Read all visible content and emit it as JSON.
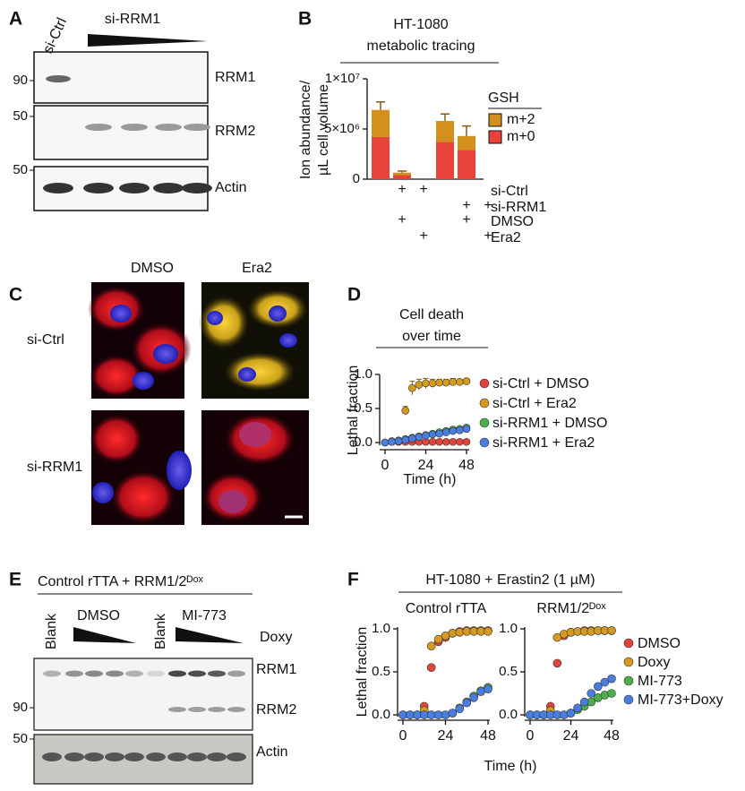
{
  "panel_labels": [
    "A",
    "B",
    "C",
    "D",
    "E",
    "F"
  ],
  "blot_a": {
    "lanes": [
      "si-Ctrl",
      "si-RRM1"
    ],
    "bands": [
      "RRM1",
      "RRM2",
      "Actin"
    ],
    "markers": [
      90,
      50,
      50
    ]
  },
  "images_c": {
    "columns": [
      "DMSO",
      "Era2"
    ],
    "rows": [
      "si-Ctrl",
      "si-RRM1"
    ]
  },
  "blot_e": {
    "title": "Control rTTA + RRM1/2ᴰᵒˣ",
    "lanes": [
      "Blank",
      "DMSO",
      "Blank",
      "MI-773"
    ],
    "gradient_label": "Doxy",
    "bands": [
      "RRM1",
      "RRM2",
      "Actin"
    ],
    "markers": [
      90,
      50
    ]
  },
  "chart_data": [
    {
      "type": "bar",
      "stacked": true,
      "title": [
        "HT-1080",
        "metabolic tracing"
      ],
      "ylabel": [
        "Ion abundance/",
        "µL cell volume"
      ],
      "ylim": [
        0,
        10000000
      ],
      "yticks": [
        0,
        {
          "value": 5000000,
          "label": "5×10⁶"
        },
        {
          "value": 10000000,
          "label": "1×10⁷"
        }
      ],
      "legend_title": "GSH",
      "series": [
        {
          "name": "m+0",
          "color": "#e8433a",
          "values": [
            4200000,
            400000,
            3700000,
            2900000
          ]
        },
        {
          "name": "m+2",
          "color": "#d4901c",
          "values": [
            2700000,
            250000,
            2100000,
            1400000
          ],
          "errors": [
            800000,
            150000,
            700000,
            1000000
          ]
        }
      ],
      "conditions": [
        {
          "name": "si-Ctrl",
          "marks": [
            "+",
            "+",
            null,
            null
          ]
        },
        {
          "name": "si-RRM1",
          "marks": [
            null,
            null,
            "+",
            "+"
          ]
        },
        {
          "name": "DMSO",
          "marks": [
            "+",
            null,
            "+",
            null
          ]
        },
        {
          "name": "Era2",
          "marks": [
            null,
            "+",
            null,
            "+"
          ]
        }
      ]
    },
    {
      "type": "line",
      "title": [
        "Cell death",
        "over time"
      ],
      "ylabel": "Lethal fraction",
      "xlabel": "Time (h)",
      "x": [
        0,
        4,
        8,
        12,
        16,
        20,
        24,
        28,
        32,
        36,
        40,
        44,
        48
      ],
      "xlim": [
        0,
        48
      ],
      "xticks": [
        0,
        24,
        48
      ],
      "ylim": [
        0,
        1
      ],
      "yticks": [
        {
          "value": 0,
          "label": "0.0"
        },
        {
          "value": 0.5,
          "label": "0.5"
        },
        {
          "value": 1,
          "label": "1.0"
        }
      ],
      "series": [
        {
          "name": "si-Ctrl + DMSO",
          "color": "#e0443a",
          "values": [
            0,
            0.01,
            0.01,
            0.01,
            0.01,
            0.01,
            0.01,
            0.01,
            0.01,
            0.01,
            0.01,
            0.01,
            0.01
          ]
        },
        {
          "name": "si-Ctrl + Era2",
          "color": "#d59a1e",
          "values": [
            0,
            0.01,
            0.02,
            0.47,
            0.8,
            0.85,
            0.87,
            0.87,
            0.88,
            0.88,
            0.89,
            0.89,
            0.9
          ],
          "errors": [
            0,
            0,
            0,
            0.06,
            0.1,
            0.08,
            0.07,
            0.06,
            0.05,
            0.05,
            0.05,
            0.04,
            0.04
          ]
        },
        {
          "name": "si-RRM1 + DMSO",
          "color": "#4caf4a",
          "values": [
            0,
            0.02,
            0.03,
            0.05,
            0.07,
            0.09,
            0.11,
            0.13,
            0.15,
            0.17,
            0.19,
            0.2,
            0.22
          ]
        },
        {
          "name": "si-RRM1 + Era2",
          "color": "#4a7de0",
          "values": [
            0,
            0.01,
            0.02,
            0.04,
            0.06,
            0.08,
            0.1,
            0.12,
            0.13,
            0.15,
            0.17,
            0.18,
            0.2
          ]
        }
      ]
    },
    {
      "type": "line",
      "title": "HT-1080 + Erastin2 (1 µM)",
      "ylabel": "Lethal fraction",
      "xlabel": "Time (h)",
      "x": [
        0,
        4,
        8,
        12,
        16,
        20,
        24,
        28,
        32,
        36,
        40,
        44,
        48
      ],
      "xlim": [
        0,
        48
      ],
      "xticks": [
        0,
        24,
        48
      ],
      "ylim": [
        0,
        1
      ],
      "yticks": [
        {
          "value": 0,
          "label": "0.0"
        },
        {
          "value": 0.5,
          "label": "0.5"
        },
        {
          "value": 1,
          "label": "1.0"
        }
      ],
      "series": [
        {
          "name": "DMSO",
          "color": "#e0443a"
        },
        {
          "name": "Doxy",
          "color": "#d59a1e"
        },
        {
          "name": "MI-773",
          "color": "#4caf4a"
        },
        {
          "name": "MI-773+Doxy",
          "color": "#4a7de0"
        }
      ],
      "subplots": [
        {
          "title": "Control rTTA",
          "values": [
            [
              0,
              0,
              0,
              0.1,
              0.55,
              0.85,
              0.9,
              0.95,
              0.97,
              0.98,
              0.98,
              0.98,
              0.98
            ],
            [
              0,
              0,
              0,
              0.05,
              0.8,
              0.88,
              0.92,
              0.95,
              0.96,
              0.97,
              0.97,
              0.97,
              0.97
            ],
            [
              0,
              0,
              0,
              0,
              0,
              0,
              0,
              0.02,
              0.08,
              0.15,
              0.22,
              0.28,
              0.32
            ],
            [
              0,
              0,
              0,
              0,
              0,
              0,
              0,
              0.02,
              0.07,
              0.14,
              0.2,
              0.27,
              0.3
            ]
          ]
        },
        {
          "title": "RRM1/2ᴰᵒˣ",
          "values": [
            [
              0,
              0,
              0,
              0.1,
              0.6,
              0.92,
              0.96,
              0.97,
              0.98,
              0.98,
              0.98,
              0.98,
              0.98
            ],
            [
              0,
              0,
              0,
              0.05,
              0.9,
              0.94,
              0.96,
              0.97,
              0.97,
              0.97,
              0.98,
              0.98,
              0.98
            ],
            [
              0,
              0,
              0,
              0,
              0,
              0,
              0.02,
              0.06,
              0.1,
              0.15,
              0.2,
              0.23,
              0.25
            ],
            [
              0,
              0,
              0,
              0,
              0,
              0,
              0.02,
              0.08,
              0.15,
              0.25,
              0.33,
              0.38,
              0.42
            ]
          ]
        }
      ]
    }
  ]
}
